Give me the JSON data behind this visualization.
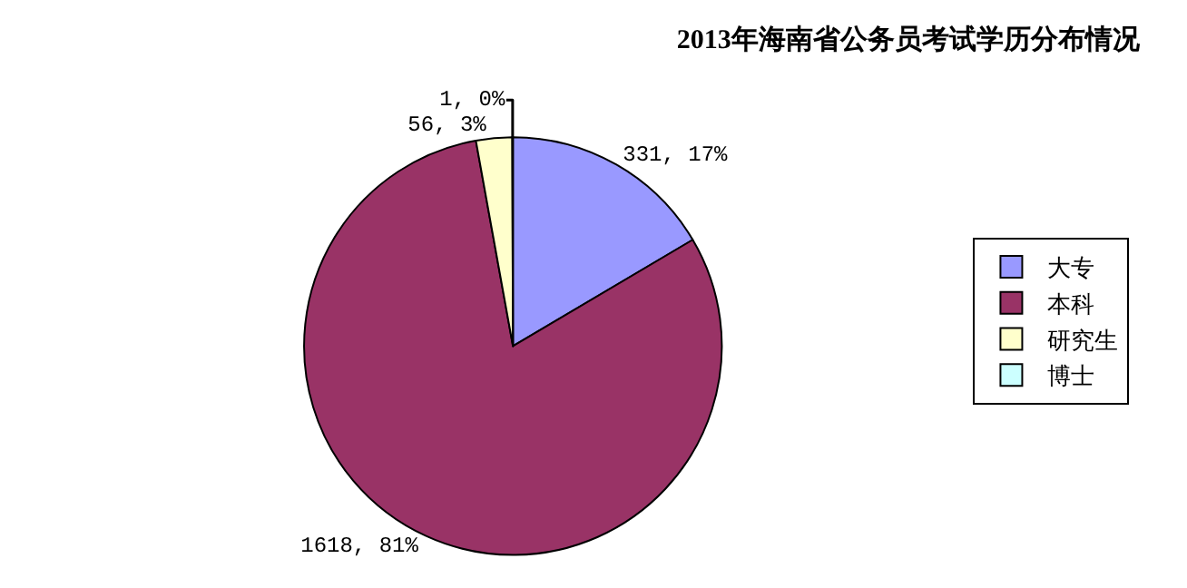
{
  "chart_data": {
    "type": "pie",
    "title": "2013年海南省公务员考试学历分布情况",
    "categories": [
      "大专",
      "本科",
      "研究生",
      "博士"
    ],
    "values": [
      331,
      1618,
      56,
      1
    ],
    "colors": [
      "#9999ff",
      "#993366",
      "#ffffcc",
      "#ccffff"
    ],
    "value_labels": [
      "331, 17%",
      "1618, 81%",
      "56, 3%",
      "1, 0%"
    ],
    "legend": "right"
  }
}
